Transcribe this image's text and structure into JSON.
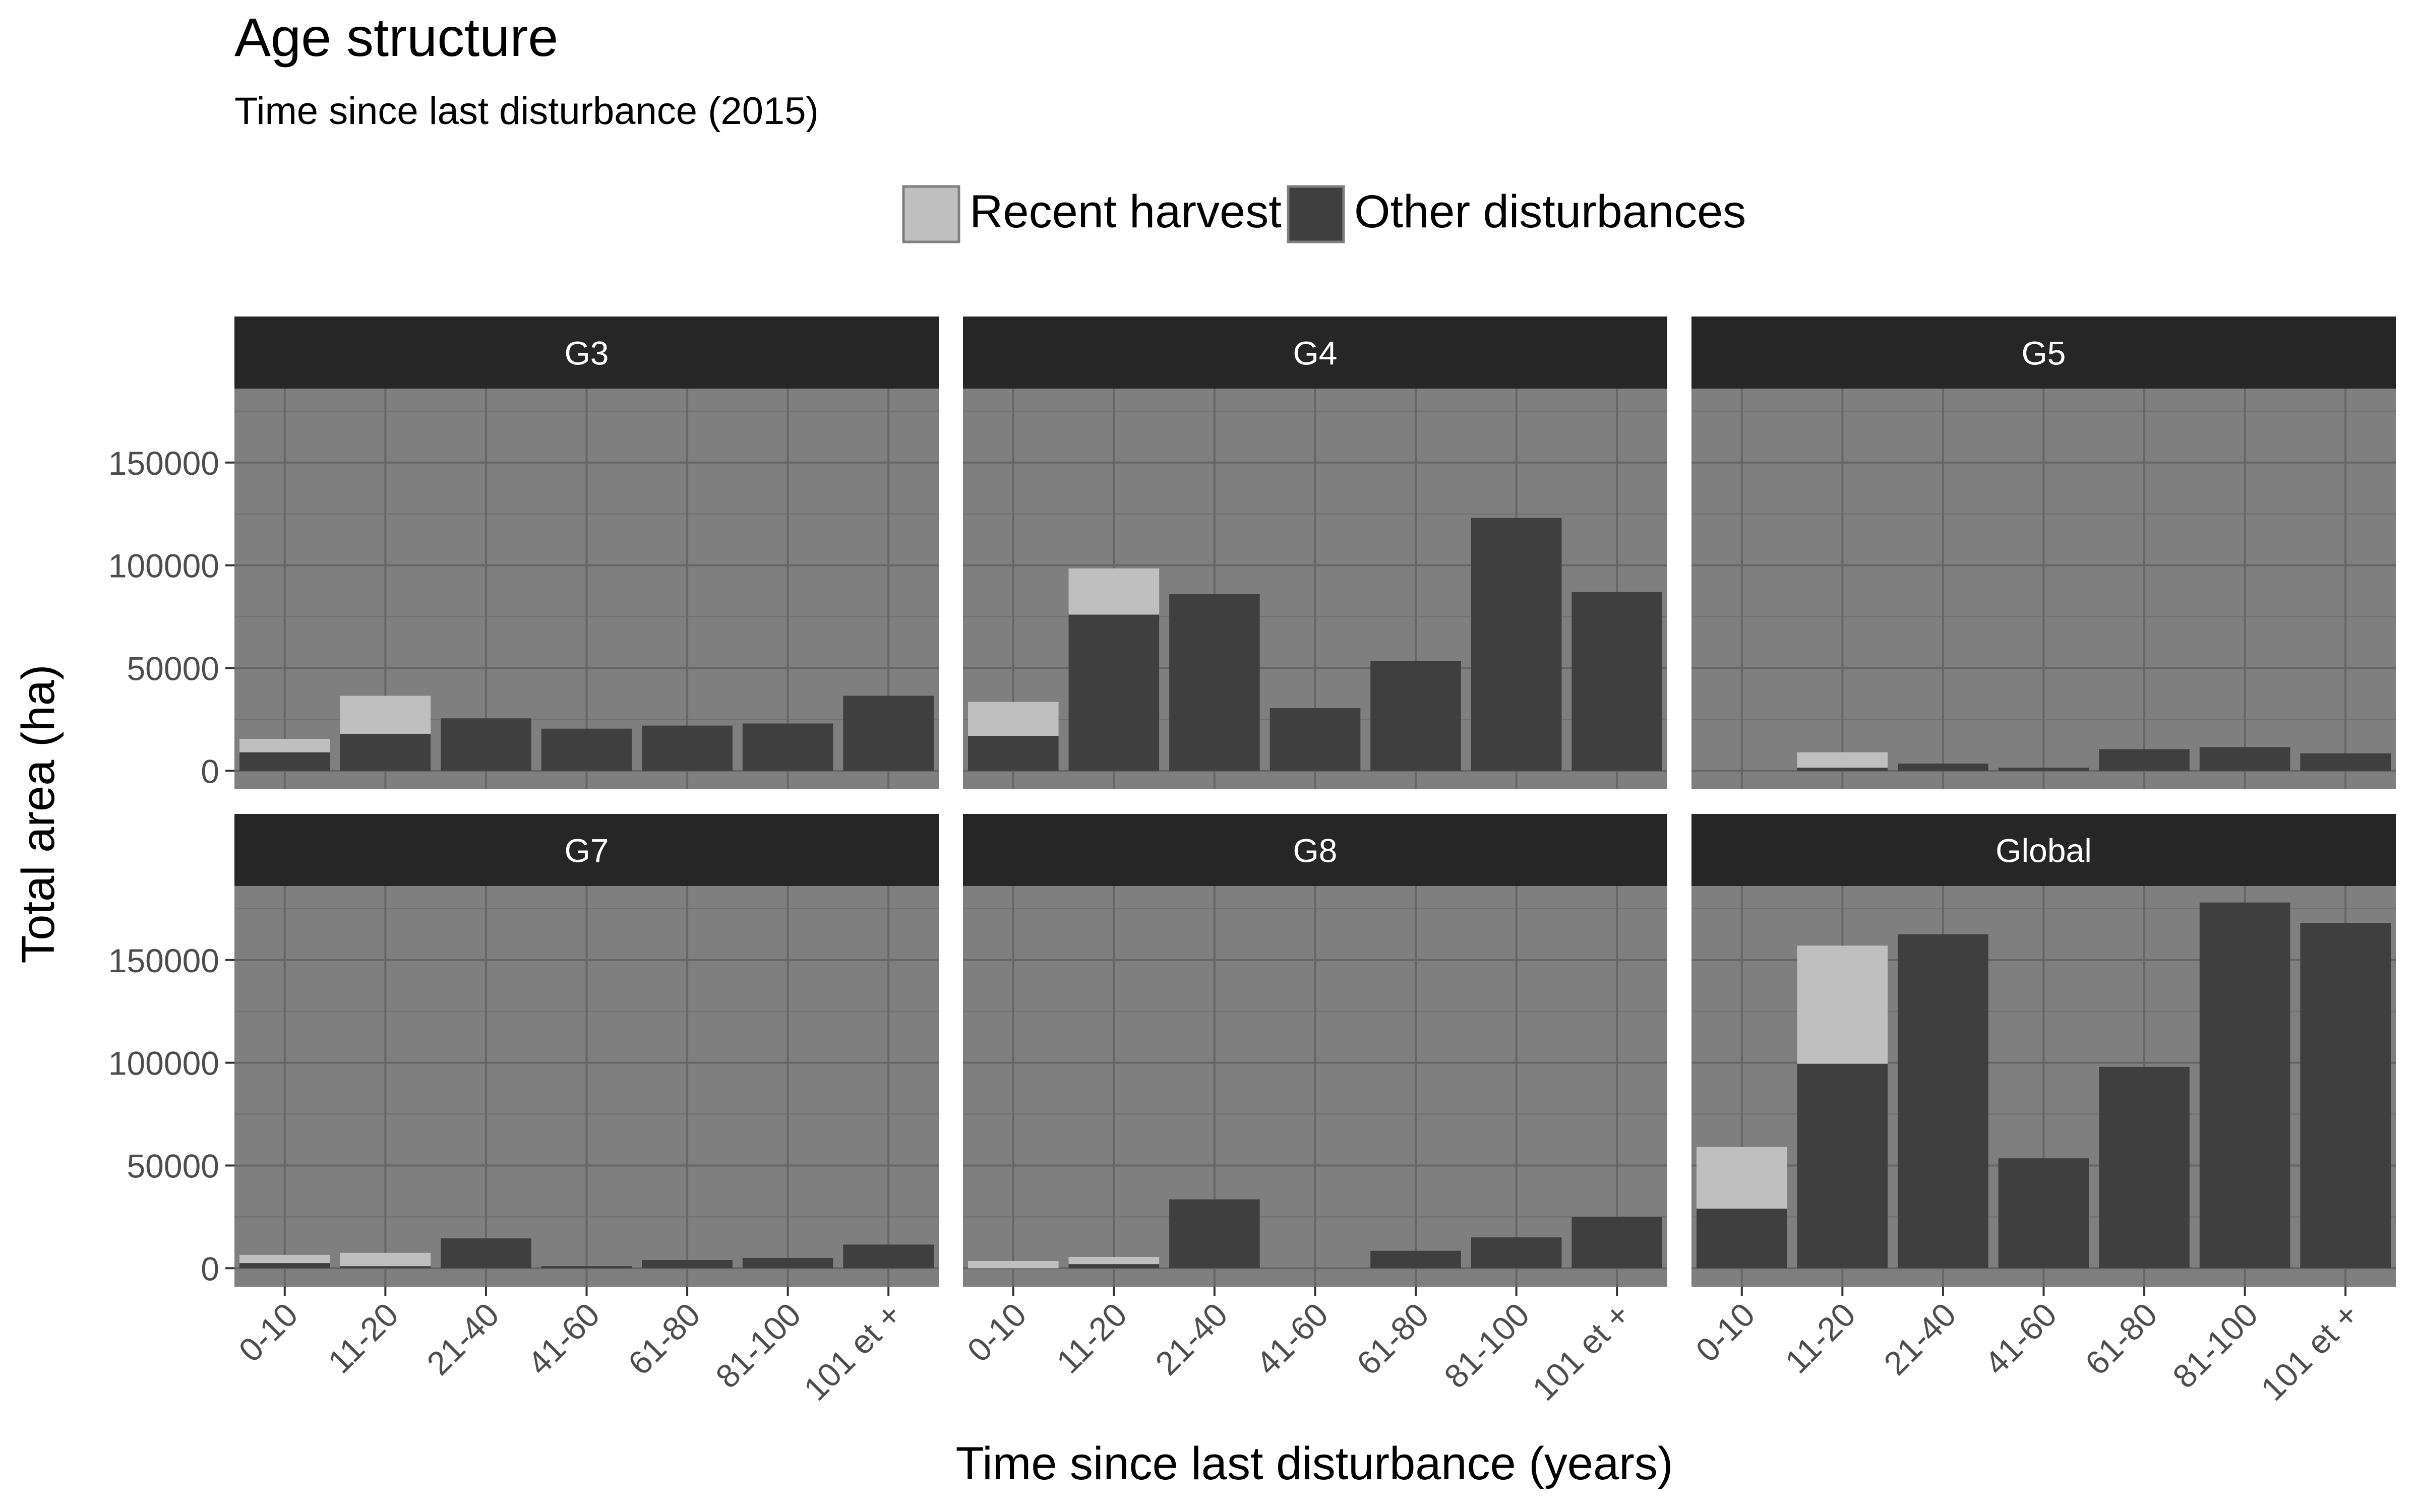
{
  "chart_data": {
    "type": "bar",
    "stacked": true,
    "title": "Age structure",
    "subtitle": "Time since last disturbance (2015)",
    "xlabel": "Time since last disturbance (years)",
    "ylabel": "Total area (ha)",
    "legend_position": "top",
    "grid": true,
    "ylim": [
      -9000,
      186000
    ],
    "yticks": [
      0,
      50000,
      100000,
      150000
    ],
    "ytick_labels": [
      "0",
      "50000",
      "100000",
      "150000"
    ],
    "categories": [
      "0-10",
      "11-20",
      "21-40",
      "41-60",
      "61-80",
      "81-100",
      "101 et +"
    ],
    "series": [
      {
        "name": "Recent harvest",
        "color": "#bfbfbf"
      },
      {
        "name": "Other disturbances",
        "color": "#3f3f3f"
      }
    ],
    "panels": [
      {
        "label": "G3",
        "other": [
          9000,
          18000,
          25500,
          20500,
          22000,
          23000,
          36500
        ],
        "harvest": [
          6500,
          18500,
          0,
          0,
          0,
          0,
          0
        ]
      },
      {
        "label": "G4",
        "other": [
          17000,
          76000,
          86000,
          30500,
          53500,
          123000,
          87000
        ],
        "harvest": [
          16500,
          22500,
          0,
          0,
          0,
          0,
          0
        ]
      },
      {
        "label": "G5",
        "other": [
          0,
          1500,
          3500,
          1500,
          10500,
          11500,
          8500
        ],
        "harvest": [
          0,
          7500,
          0,
          0,
          0,
          0,
          0
        ]
      },
      {
        "label": "G7",
        "other": [
          2500,
          1000,
          14500,
          1000,
          4000,
          5000,
          11500
        ],
        "harvest": [
          4000,
          6500,
          0,
          0,
          0,
          0,
          0
        ]
      },
      {
        "label": "G8",
        "other": [
          0,
          2000,
          33500,
          0,
          8500,
          15000,
          25000
        ],
        "harvest": [
          3500,
          3500,
          0,
          0,
          0,
          0,
          0
        ]
      },
      {
        "label": "Global",
        "other": [
          29000,
          99500,
          162500,
          53500,
          98000,
          178000,
          168000
        ],
        "harvest": [
          30000,
          57500,
          0,
          0,
          0,
          0,
          0
        ]
      }
    ]
  }
}
